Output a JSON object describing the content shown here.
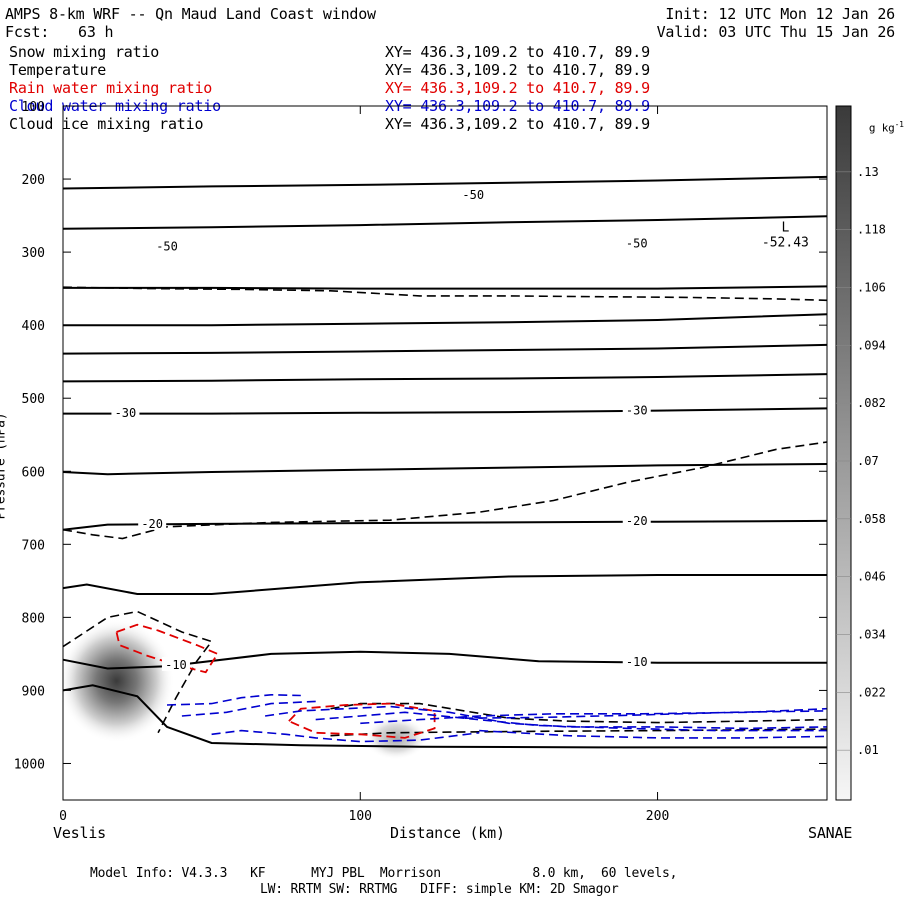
{
  "header": {
    "title": "AMPS 8-km WRF -- Qn Maud Land Coast window",
    "fcst_label": "Fcst:",
    "fcst_value": "63 h",
    "init": "Init: 12 UTC Mon 12 Jan 26",
    "valid": "Valid: 03 UTC Thu 15 Jan 26"
  },
  "fields": [
    {
      "name": "Snow mixing ratio",
      "xy": "XY= 436.3,109.2 to 410.7, 89.9",
      "color": "#000000"
    },
    {
      "name": "Temperature",
      "xy": "XY= 436.3,109.2 to 410.7, 89.9",
      "color": "#000000"
    },
    {
      "name": "Rain water mixing ratio",
      "xy": "XY= 436.3,109.2 to 410.7, 89.9",
      "color": "#e00000"
    },
    {
      "name": "Cloud water mixing ratio",
      "xy": "XY= 436.3,109.2 to 410.7, 89.9",
      "color": "#0000d0"
    },
    {
      "name": "Cloud ice mixing ratio",
      "xy": "XY= 436.3,109.2 to 410.7, 89.9",
      "color": "#000000"
    }
  ],
  "chart_data": {
    "type": "cross-section contour",
    "xlabel": "Distance (km)",
    "ylabel": "Pressure (hPa)",
    "xlim": [
      0,
      257
    ],
    "ylim": [
      1050,
      100
    ],
    "x_ticks": [
      0,
      100,
      200
    ],
    "y_ticks": [
      100,
      200,
      300,
      400,
      500,
      600,
      700,
      800,
      900,
      1000
    ],
    "endpoints": {
      "left": "Veslis",
      "right": "SANAE"
    },
    "colorbar": {
      "unit": "g kg",
      "unit_sup": "-1",
      "labels": [
        ".13",
        ".118",
        ".106",
        ".094",
        ".082",
        ".07",
        ".058",
        ".046",
        ".034",
        ".022",
        ".01"
      ]
    },
    "temperature_labels": [
      {
        "text": "-50",
        "x": 138,
        "p": 222
      },
      {
        "text": "-50",
        "x": 35,
        "p": 292
      },
      {
        "text": "-50",
        "x": 193,
        "p": 288
      },
      {
        "text": "-30",
        "x": 21,
        "p": 520
      },
      {
        "text": "-30",
        "x": 193,
        "p": 517
      },
      {
        "text": "-20",
        "x": 30,
        "p": 672
      },
      {
        "text": "-20",
        "x": 193,
        "p": 668
      },
      {
        "text": "-10",
        "x": 38,
        "p": 865
      },
      {
        "text": "-10",
        "x": 193,
        "p": 861
      }
    ],
    "low_marker": {
      "symbol": "L",
      "value": "-52.43",
      "x": 243,
      "p": 272
    },
    "isotherms": [
      [
        [
          0,
          213
        ],
        [
          50,
          210
        ],
        [
          100,
          208
        ],
        [
          150,
          205
        ],
        [
          200,
          202
        ],
        [
          257,
          197
        ]
      ],
      [
        [
          0,
          268
        ],
        [
          50,
          266
        ],
        [
          100,
          263
        ],
        [
          150,
          259
        ],
        [
          200,
          256
        ],
        [
          257,
          251
        ]
      ],
      [
        [
          0,
          349
        ],
        [
          50,
          349
        ],
        [
          100,
          350
        ],
        [
          150,
          350
        ],
        [
          200,
          350
        ],
        [
          257,
          347
        ]
      ],
      [
        [
          0,
          400
        ],
        [
          50,
          400
        ],
        [
          100,
          398
        ],
        [
          150,
          396
        ],
        [
          200,
          393
        ],
        [
          257,
          385
        ]
      ],
      [
        [
          0,
          439
        ],
        [
          50,
          438
        ],
        [
          100,
          436
        ],
        [
          150,
          434
        ],
        [
          200,
          432
        ],
        [
          257,
          427
        ]
      ],
      [
        [
          0,
          477
        ],
        [
          50,
          476
        ],
        [
          100,
          474
        ],
        [
          150,
          473
        ],
        [
          200,
          471
        ],
        [
          257,
          467
        ]
      ],
      [
        [
          0,
          521
        ],
        [
          50,
          521
        ],
        [
          100,
          520
        ],
        [
          150,
          519
        ],
        [
          200,
          517
        ],
        [
          257,
          514
        ]
      ],
      [
        [
          0,
          601
        ],
        [
          15,
          604
        ],
        [
          50,
          601
        ],
        [
          100,
          598
        ],
        [
          150,
          595
        ],
        [
          200,
          592
        ],
        [
          257,
          590
        ]
      ],
      [
        [
          0,
          680
        ],
        [
          15,
          673
        ],
        [
          50,
          672
        ],
        [
          100,
          671
        ],
        [
          150,
          670
        ],
        [
          200,
          669
        ],
        [
          257,
          668
        ]
      ],
      [
        [
          0,
          760
        ],
        [
          8,
          755
        ],
        [
          25,
          768
        ],
        [
          50,
          768
        ],
        [
          100,
          752
        ],
        [
          150,
          744
        ],
        [
          200,
          742
        ],
        [
          257,
          742
        ]
      ],
      [
        [
          0,
          858
        ],
        [
          15,
          870
        ],
        [
          35,
          867
        ],
        [
          70,
          850
        ],
        [
          100,
          847
        ],
        [
          130,
          850
        ],
        [
          160,
          860
        ],
        [
          200,
          862
        ],
        [
          257,
          862
        ]
      ],
      [
        [
          0,
          900
        ],
        [
          10,
          893
        ],
        [
          25,
          908
        ],
        [
          35,
          950
        ],
        [
          50,
          972
        ],
        [
          80,
          975
        ],
        [
          120,
          977
        ],
        [
          180,
          978
        ],
        [
          257,
          978
        ]
      ]
    ],
    "snow_dashed": [
      [
        [
          0,
          680
        ],
        [
          10,
          687
        ],
        [
          20,
          692
        ],
        [
          35,
          676
        ],
        [
          70,
          670
        ],
        [
          110,
          667
        ],
        [
          140,
          656
        ],
        [
          165,
          640
        ],
        [
          190,
          615
        ],
        [
          215,
          595
        ],
        [
          240,
          570
        ],
        [
          257,
          560
        ]
      ],
      [
        [
          0,
          348
        ],
        [
          30,
          350
        ],
        [
          60,
          351
        ],
        [
          90,
          353
        ],
        [
          120,
          360
        ],
        [
          150,
          360
        ],
        [
          180,
          361
        ],
        [
          210,
          362
        ],
        [
          240,
          364
        ],
        [
          257,
          366
        ]
      ],
      [
        [
          0,
          840
        ],
        [
          15,
          800
        ],
        [
          25,
          792
        ],
        [
          40,
          820
        ],
        [
          50,
          833
        ],
        [
          45,
          860
        ],
        [
          38,
          910
        ],
        [
          32,
          958
        ]
      ],
      [
        [
          90,
          925
        ],
        [
          100,
          918
        ],
        [
          120,
          918
        ],
        [
          135,
          928
        ],
        [
          150,
          938
        ],
        [
          170,
          942
        ],
        [
          200,
          944
        ],
        [
          230,
          942
        ],
        [
          257,
          940
        ]
      ],
      [
        [
          90,
          962
        ],
        [
          110,
          958
        ],
        [
          130,
          957
        ],
        [
          160,
          956
        ],
        [
          200,
          955
        ],
        [
          257,
          953
        ]
      ]
    ],
    "rain_dashed": [
      [
        [
          18,
          820
        ],
        [
          25,
          810
        ],
        [
          32,
          818
        ],
        [
          45,
          838
        ],
        [
          52,
          850
        ],
        [
          48,
          875
        ],
        [
          38,
          865
        ],
        [
          28,
          852
        ],
        [
          19,
          838
        ],
        [
          18,
          820
        ]
      ],
      [
        [
          76,
          942
        ],
        [
          80,
          925
        ],
        [
          95,
          920
        ],
        [
          110,
          918
        ],
        [
          125,
          928
        ],
        [
          125,
          952
        ],
        [
          115,
          965
        ],
        [
          100,
          960
        ],
        [
          85,
          958
        ],
        [
          76,
          942
        ]
      ]
    ],
    "cloudwater_dashed": [
      [
        [
          35,
          920
        ],
        [
          50,
          918
        ],
        [
          60,
          910
        ],
        [
          70,
          906
        ],
        [
          80,
          907
        ]
      ],
      [
        [
          40,
          935
        ],
        [
          55,
          930
        ],
        [
          70,
          918
        ],
        [
          85,
          915
        ]
      ],
      [
        [
          50,
          960
        ],
        [
          60,
          955
        ],
        [
          75,
          960
        ],
        [
          85,
          965
        ],
        [
          100,
          970
        ],
        [
          120,
          968
        ],
        [
          140,
          958
        ]
      ],
      [
        [
          68,
          935
        ],
        [
          80,
          928
        ],
        [
          95,
          925
        ],
        [
          110,
          922
        ],
        [
          130,
          930
        ],
        [
          150,
          945
        ],
        [
          170,
          950
        ],
        [
          200,
          950
        ],
        [
          230,
          952
        ],
        [
          257,
          950
        ]
      ],
      [
        [
          85,
          940
        ],
        [
          100,
          935
        ],
        [
          115,
          930
        ],
        [
          135,
          938
        ],
        [
          160,
          948
        ],
        [
          190,
          952
        ],
        [
          220,
          955
        ],
        [
          257,
          955
        ]
      ],
      [
        [
          100,
          945
        ],
        [
          120,
          940
        ],
        [
          140,
          935
        ],
        [
          165,
          932
        ],
        [
          195,
          932
        ],
        [
          230,
          930
        ],
        [
          257,
          925
        ]
      ],
      [
        [
          135,
          938
        ],
        [
          160,
          937
        ],
        [
          190,
          934
        ],
        [
          225,
          930
        ],
        [
          257,
          928
        ]
      ],
      [
        [
          140,
          955
        ],
        [
          170,
          962
        ],
        [
          200,
          965
        ],
        [
          230,
          965
        ],
        [
          257,
          963
        ]
      ]
    ],
    "shaded_maxima": [
      {
        "x": 18,
        "p": 887,
        "value": 0.09
      },
      {
        "x": 112,
        "p": 965,
        "value": 0.03
      }
    ]
  },
  "footer": {
    "line1": "Model Info: V4.3.3   KF      MYJ PBL  Morrison            8.0 km,  60 levels,",
    "line2": "LW: RRTM SW: RRTMG   DIFF: simple KM: 2D Smagor"
  }
}
